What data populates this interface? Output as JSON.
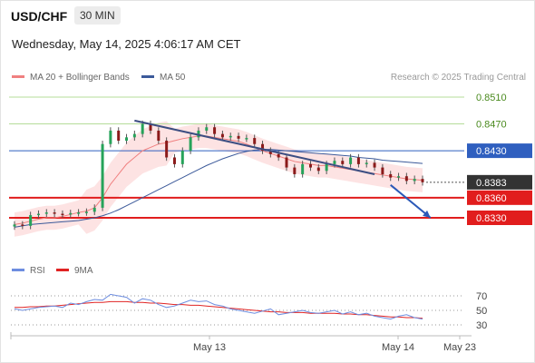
{
  "header": {
    "symbol": "USD/CHF",
    "timeframe": "30 MIN",
    "datetime": "Wednesday, May 14, 2025 4:06:17 AM CET"
  },
  "legend": {
    "ma20_label": "MA 20 + Bollinger Bands",
    "ma50_label": "MA 50",
    "credit": "Research © 2025 Trading Central",
    "rsi_label": "RSI",
    "ma9_label": "9MA"
  },
  "colors": {
    "bearish_line": "#3c4e82",
    "ma50": "#3c5a9a",
    "ma20": "#f08080",
    "band_fill": "#fcd9d9",
    "resistance_green": "#b5dc9a",
    "pivot_blue": "#2f5fbf",
    "support_red": "#e11d1d",
    "price_badge": "#333333",
    "rsi_line": "#6e8ee0",
    "rsi_ma": "#e02424"
  },
  "chart_data": [
    {
      "type": "candlestick",
      "x_labels": [
        "May 13",
        "May 14",
        "May 23"
      ],
      "y_range": [
        0.8305,
        0.8525
      ],
      "levels": [
        {
          "value": 0.851,
          "label": "0.8510",
          "kind": "resistance"
        },
        {
          "value": 0.847,
          "label": "0.8470",
          "kind": "resistance"
        },
        {
          "value": 0.843,
          "label": "0.8430",
          "kind": "pivot"
        },
        {
          "value": 0.8383,
          "label": "0.8383",
          "kind": "last_price"
        },
        {
          "value": 0.836,
          "label": "0.8360",
          "kind": "support"
        },
        {
          "value": 0.833,
          "label": "0.8330",
          "kind": "support"
        }
      ],
      "close_path": [
        0.832,
        0.8318,
        0.8334,
        0.8336,
        0.8338,
        0.8336,
        0.8335,
        0.8337,
        0.8338,
        0.8339,
        0.8345,
        0.844,
        0.846,
        0.8445,
        0.845,
        0.8455,
        0.847,
        0.846,
        0.8445,
        0.842,
        0.841,
        0.843,
        0.845,
        0.846,
        0.8465,
        0.8455,
        0.845,
        0.8452,
        0.8448,
        0.8449,
        0.844,
        0.843,
        0.8425,
        0.842,
        0.8405,
        0.8395,
        0.841,
        0.8405,
        0.84,
        0.841,
        0.8415,
        0.841,
        0.842,
        0.841,
        0.8412,
        0.8405,
        0.8395,
        0.839,
        0.8392,
        0.8385,
        0.8388,
        0.8383
      ],
      "ma20": [
        0.832,
        0.8322,
        0.8325,
        0.8328,
        0.833,
        0.833,
        0.8332,
        0.8335,
        0.8338,
        0.834,
        0.8345,
        0.836,
        0.838,
        0.8395,
        0.841,
        0.842,
        0.843,
        0.8435,
        0.844,
        0.8442,
        0.8445,
        0.8448,
        0.845,
        0.8452,
        0.8452,
        0.845,
        0.8448,
        0.8446,
        0.8444,
        0.844,
        0.8435,
        0.843,
        0.8426,
        0.8422,
        0.8418,
        0.8414,
        0.8412,
        0.841,
        0.8408,
        0.8408,
        0.8406,
        0.8404,
        0.8402,
        0.84,
        0.8398,
        0.8396,
        0.8394,
        0.8392,
        0.839,
        0.8388,
        0.8387,
        0.8386
      ],
      "ma50": [
        0.8316,
        0.8318,
        0.832,
        0.8321,
        0.8322,
        0.8323,
        0.8324,
        0.8325,
        0.8326,
        0.8328,
        0.833,
        0.8333,
        0.8337,
        0.8342,
        0.8348,
        0.8354,
        0.836,
        0.8366,
        0.8372,
        0.8378,
        0.8384,
        0.839,
        0.8396,
        0.8402,
        0.8408,
        0.8413,
        0.8418,
        0.8422,
        0.8426,
        0.8429,
        0.8431,
        0.8432,
        0.8432,
        0.8431,
        0.843,
        0.8429,
        0.8428,
        0.8427,
        0.8426,
        0.8425,
        0.8424,
        0.8423,
        0.8422,
        0.842,
        0.8419,
        0.8418,
        0.8416,
        0.8415,
        0.8414,
        0.8413,
        0.8412,
        0.8411
      ],
      "bearish_trendline": [
        [
          15,
          0.8475
        ],
        [
          45,
          0.8395
        ]
      ],
      "projection_arrow": [
        [
          47,
          0.8379
        ],
        [
          52,
          0.833
        ]
      ]
    },
    {
      "type": "line",
      "name": "RSI",
      "y_range": [
        20,
        80
      ],
      "y_ticks": [
        30,
        50,
        70
      ],
      "rsi": [
        52,
        50,
        52,
        54,
        55,
        56,
        54,
        60,
        58,
        62,
        65,
        64,
        72,
        70,
        68,
        60,
        66,
        64,
        58,
        54,
        56,
        60,
        64,
        62,
        63,
        58,
        56,
        52,
        50,
        48,
        46,
        49,
        52,
        44,
        46,
        48,
        50,
        47,
        46,
        48,
        50,
        45,
        48,
        44,
        46,
        42,
        40,
        38,
        42,
        44,
        40,
        38
      ],
      "rsi_ma": [
        54,
        54,
        55,
        55,
        56,
        56,
        57,
        58,
        59,
        60,
        61,
        61,
        62,
        62,
        62,
        61,
        61,
        60,
        60,
        59,
        58,
        58,
        57,
        57,
        56,
        55,
        54,
        53,
        52,
        51,
        50,
        49,
        48,
        48,
        47,
        47,
        47,
        46,
        46,
        46,
        46,
        45,
        45,
        44,
        44,
        43,
        42,
        41,
        41,
        40,
        40,
        39
      ]
    }
  ]
}
